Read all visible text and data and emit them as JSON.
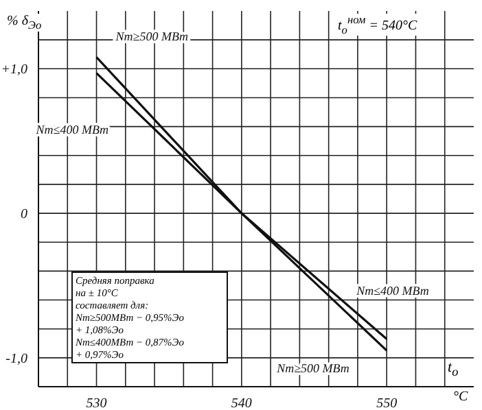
{
  "chart_data": {
    "type": "line",
    "ylabel": "% δ$_{Эо}$",
    "xlabel": "t$_{о}$",
    "annotations": [
      "t$_{о}$$^{ном}$ = 540°C",
      "°C",
      "Средняя поправка\nна ± 10°C\nсоставляет для:\nNт≥500МВт  − 0,95%Эо\n+ 1,08%Эо\nNт≤400МВт  − 0,87%Эо\n+ 0,97%Эо"
    ],
    "x": [
      530,
      540,
      550
    ],
    "series": [
      {
        "name": "Nт≥500 МВт",
        "color": "#111111",
        "values": [
          1.08,
          0,
          -0.95
        ]
      },
      {
        "name": "Nт≤400 МВт",
        "color": "#111111",
        "values": [
          0.97,
          0,
          -0.87
        ]
      }
    ],
    "xlim": [
      526,
      556
    ],
    "xticks": [
      {
        "value": 526,
        "label": null
      },
      {
        "value": 528,
        "label": null
      },
      530,
      {
        "value": 532,
        "label": null
      },
      {
        "value": 534,
        "label": null
      },
      {
        "value": 536,
        "label": null
      },
      {
        "value": 538,
        "label": null
      },
      540,
      {
        "value": 542,
        "label": null
      },
      {
        "value": 544,
        "label": null
      },
      {
        "value": 546,
        "label": null
      },
      {
        "value": 548,
        "label": null
      },
      550,
      {
        "value": 552,
        "label": null
      },
      {
        "value": 554,
        "label": null
      }
    ],
    "ylim": [
      -1.2,
      1.4
    ],
    "yticks": [
      {
        "value": -1.2,
        "label": null
      },
      {
        "value": -1,
        "label": "-1,0"
      },
      {
        "value": -0.8,
        "label": null
      },
      {
        "value": -0.6,
        "label": null
      },
      {
        "value": -0.4,
        "label": null
      },
      {
        "value": -0.2,
        "label": null
      },
      0,
      {
        "value": 0.2,
        "label": null
      },
      {
        "value": 0.4,
        "label": null
      },
      {
        "value": 0.6,
        "label": null
      },
      {
        "value": 0.8,
        "label": null
      },
      {
        "value": 1,
        "label": "+1,0"
      },
      {
        "value": 1.2,
        "label": null
      }
    ],
    "grid": true,
    "legend": false,
    "marker": "none",
    "line_style": "solid"
  }
}
